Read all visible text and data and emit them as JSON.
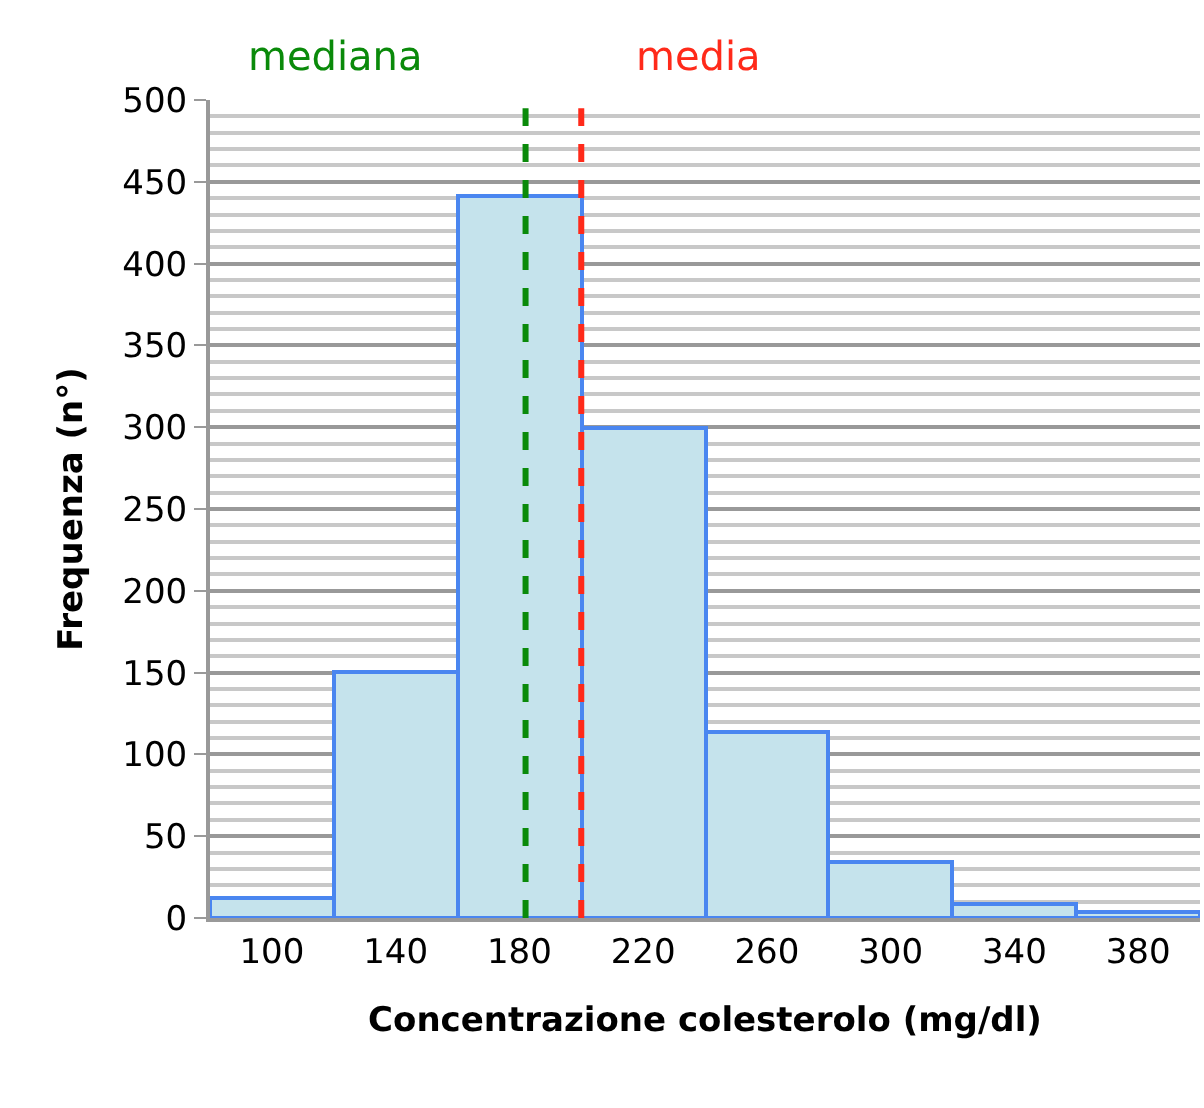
{
  "chart_data": {
    "type": "histogram",
    "xlabel": "Concentrazione colesterolo (mg/dl)",
    "ylabel": "Frequenza (n°)",
    "bins": [
      80,
      120,
      160,
      200,
      240,
      280,
      320,
      360,
      400
    ],
    "values": [
      12,
      150,
      441,
      299,
      114,
      34,
      9,
      4
    ],
    "color": "#c5e3ec",
    "xlim": [
      80,
      400
    ],
    "xticks": [
      100,
      140,
      180,
      220,
      260,
      300,
      340,
      380
    ],
    "ylim": [
      0,
      500
    ],
    "yticks": [
      0,
      50,
      100,
      150,
      200,
      250,
      300,
      350,
      400,
      450,
      500
    ],
    "grid": "y",
    "ref_lines": [
      {
        "axis": "x",
        "value": 182,
        "label": "mediana",
        "color": "#0a8a0a",
        "line_style": "dashed"
      },
      {
        "axis": "x",
        "value": 200,
        "label": "media",
        "color": "#ff2a1a",
        "line_style": "dashed"
      }
    ]
  }
}
